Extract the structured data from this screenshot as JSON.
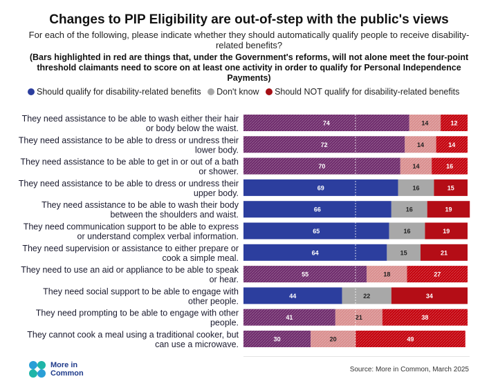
{
  "title": "Changes to PIP Eligibility are out-of-step with the public's views",
  "subtitle": "For each of the following, please indicate whether they should automatically qualify people to receive disability-related benefits?",
  "note": "(Bars highlighted in red are things that, under the Government's reforms, will not alone meet the four-point threshold claimants need to score on at least one activity in order to qualify for Personal Independence Payments)",
  "legend": [
    {
      "label": "Should qualify for disability-related benefits",
      "color": "#2c3e9e"
    },
    {
      "label": "Don't know",
      "color": "#a8a8a8"
    },
    {
      "label": "Should NOT qualify for disability-related benefits",
      "color": "#a50f15"
    }
  ],
  "colors": {
    "qualify": "#2c3e9e",
    "dont_know": "#a8a8a8",
    "not_qualify": "#b40d16",
    "qualify_highlight": "#6e2a6b",
    "dont_know_highlight": "#d98e8e",
    "not_qualify_highlight": "#c4000b"
  },
  "chart_data": {
    "type": "bar",
    "orientation": "horizontal",
    "stacked": true,
    "xlim": [
      0,
      100
    ],
    "categories": [
      "They need assistance to be able to wash either their hair or body below the waist.",
      "They need assistance to be able to dress or undress their lower body.",
      "They need assistance to be able to get in or out of a bath or shower.",
      "They need assistance to be able to dress or undress their upper body.",
      "They need assistance to be able to wash their body between the shoulders and waist.",
      "They need communication support to be able to express or understand complex verbal information.",
      "They need supervision or assistance to either prepare or cook a simple meal.",
      "They need to use an aid or appliance to be able to speak or hear.",
      "They need social support to be able to engage with other people.",
      "They need prompting to be able to engage with other people.",
      "They cannot cook a meal using a traditional cooker, but can use a microwave."
    ],
    "category_lines": [
      [
        "They need assistance to be able to wash either their hair",
        "or body below the waist."
      ],
      [
        "They need assistance to be able to dress or undress their",
        "lower body."
      ],
      [
        "They need assistance to be able to get in or out of a bath",
        "or shower."
      ],
      [
        "They need assistance to be able to dress or undress their",
        "upper body."
      ],
      [
        "They need assistance to be able to wash their body",
        "between the shoulders and waist."
      ],
      [
        "They need communication support to be able to express",
        "or understand complex verbal information."
      ],
      [
        "They need supervision or assistance to either prepare or",
        "cook a simple meal."
      ],
      [
        "They need to use an aid or appliance to be able to speak",
        "or hear."
      ],
      [
        "They need social support to be able to engage with",
        "other people."
      ],
      [
        "They need prompting to be able to engage with other",
        "people."
      ],
      [
        "They cannot cook a meal using a traditional cooker, but",
        "can use a microwave."
      ]
    ],
    "highlighted": [
      true,
      true,
      true,
      false,
      false,
      false,
      false,
      true,
      false,
      true,
      true
    ],
    "series": [
      {
        "name": "Should qualify for disability-related benefits",
        "values": [
          74,
          72,
          70,
          69,
          66,
          65,
          64,
          55,
          44,
          41,
          30
        ]
      },
      {
        "name": "Don't know",
        "values": [
          14,
          14,
          14,
          16,
          16,
          16,
          15,
          18,
          22,
          21,
          20
        ]
      },
      {
        "name": "Should NOT qualify for disability-related benefits",
        "values": [
          12,
          14,
          16,
          15,
          19,
          19,
          21,
          27,
          34,
          38,
          49
        ]
      }
    ]
  },
  "footer": {
    "logo_line1": "More in",
    "logo_line2": "Common",
    "source": "Source: More in Common, March 2025"
  }
}
